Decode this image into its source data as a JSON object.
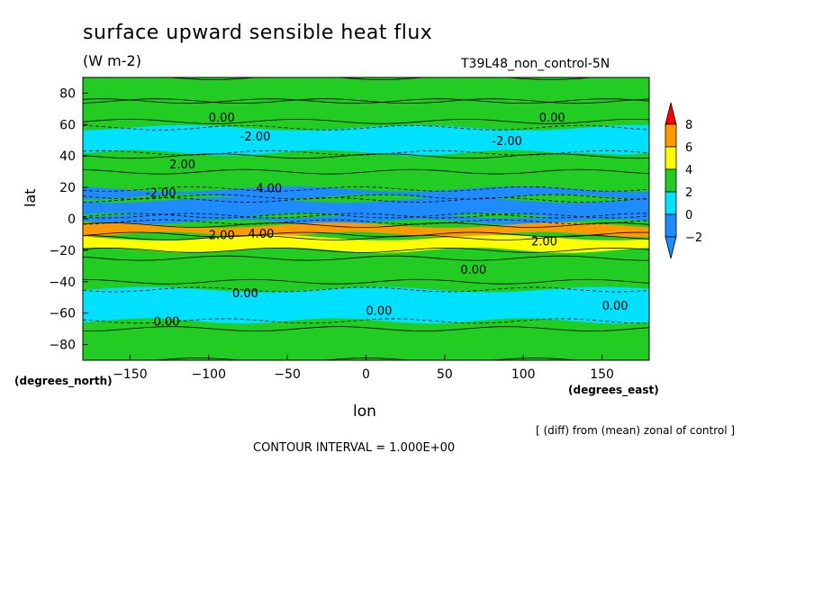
{
  "title": "surface upward sensible heat flux",
  "units": "(W m-2)",
  "run_name": "T39L48_non_control-5N",
  "note": "[ (diff) from (mean) zonal of control ]",
  "contour_interval": "CONTOUR INTERVAL = 1.000E+00",
  "chart_data": {
    "type": "heatmap",
    "title": "surface upward sensible heat flux",
    "xlabel": "lon",
    "ylabel": "lat",
    "x_units": "(degrees_east)",
    "y_units": "(degrees_north)",
    "xlim": [
      -180,
      180
    ],
    "ylim": [
      -90,
      90
    ],
    "x_ticks": [
      -150,
      -100,
      -50,
      0,
      50,
      100,
      150
    ],
    "y_ticks": [
      80,
      60,
      40,
      20,
      0,
      -20,
      -40,
      -60,
      -80
    ],
    "colorbar": {
      "levels": [
        -2,
        0,
        2,
        4,
        6,
        8
      ],
      "colors": [
        "#1e8cff",
        "#00e0ff",
        "#22cc22",
        "#ffff00",
        "#ff9900",
        "#ff0000"
      ]
    },
    "latitude_bands": [
      {
        "lat": [
          75,
          90
        ],
        "value": 1
      },
      {
        "lat": [
          62,
          75
        ],
        "value": 1
      },
      {
        "lat": [
          42,
          58
        ],
        "value": -1.5
      },
      {
        "lat": [
          30,
          40
        ],
        "value": 1
      },
      {
        "lat": [
          14,
          19
        ],
        "value": -2.5
      },
      {
        "lat": [
          2,
          12
        ],
        "value": -3
      },
      {
        "lat": [
          -2,
          2
        ],
        "value": -4
      },
      {
        "lat": [
          -10,
          -4
        ],
        "value": 4.5
      },
      {
        "lat": [
          -20,
          -12
        ],
        "value": 2.5
      },
      {
        "lat": [
          -40,
          -25
        ],
        "value": 0
      },
      {
        "lat": [
          -65,
          -45
        ],
        "value": -0.5
      },
      {
        "lat": [
          -90,
          -70
        ],
        "value": 0
      }
    ],
    "contour_labels": [
      "0.00",
      "-2.00",
      "2.00",
      "4.00"
    ]
  }
}
